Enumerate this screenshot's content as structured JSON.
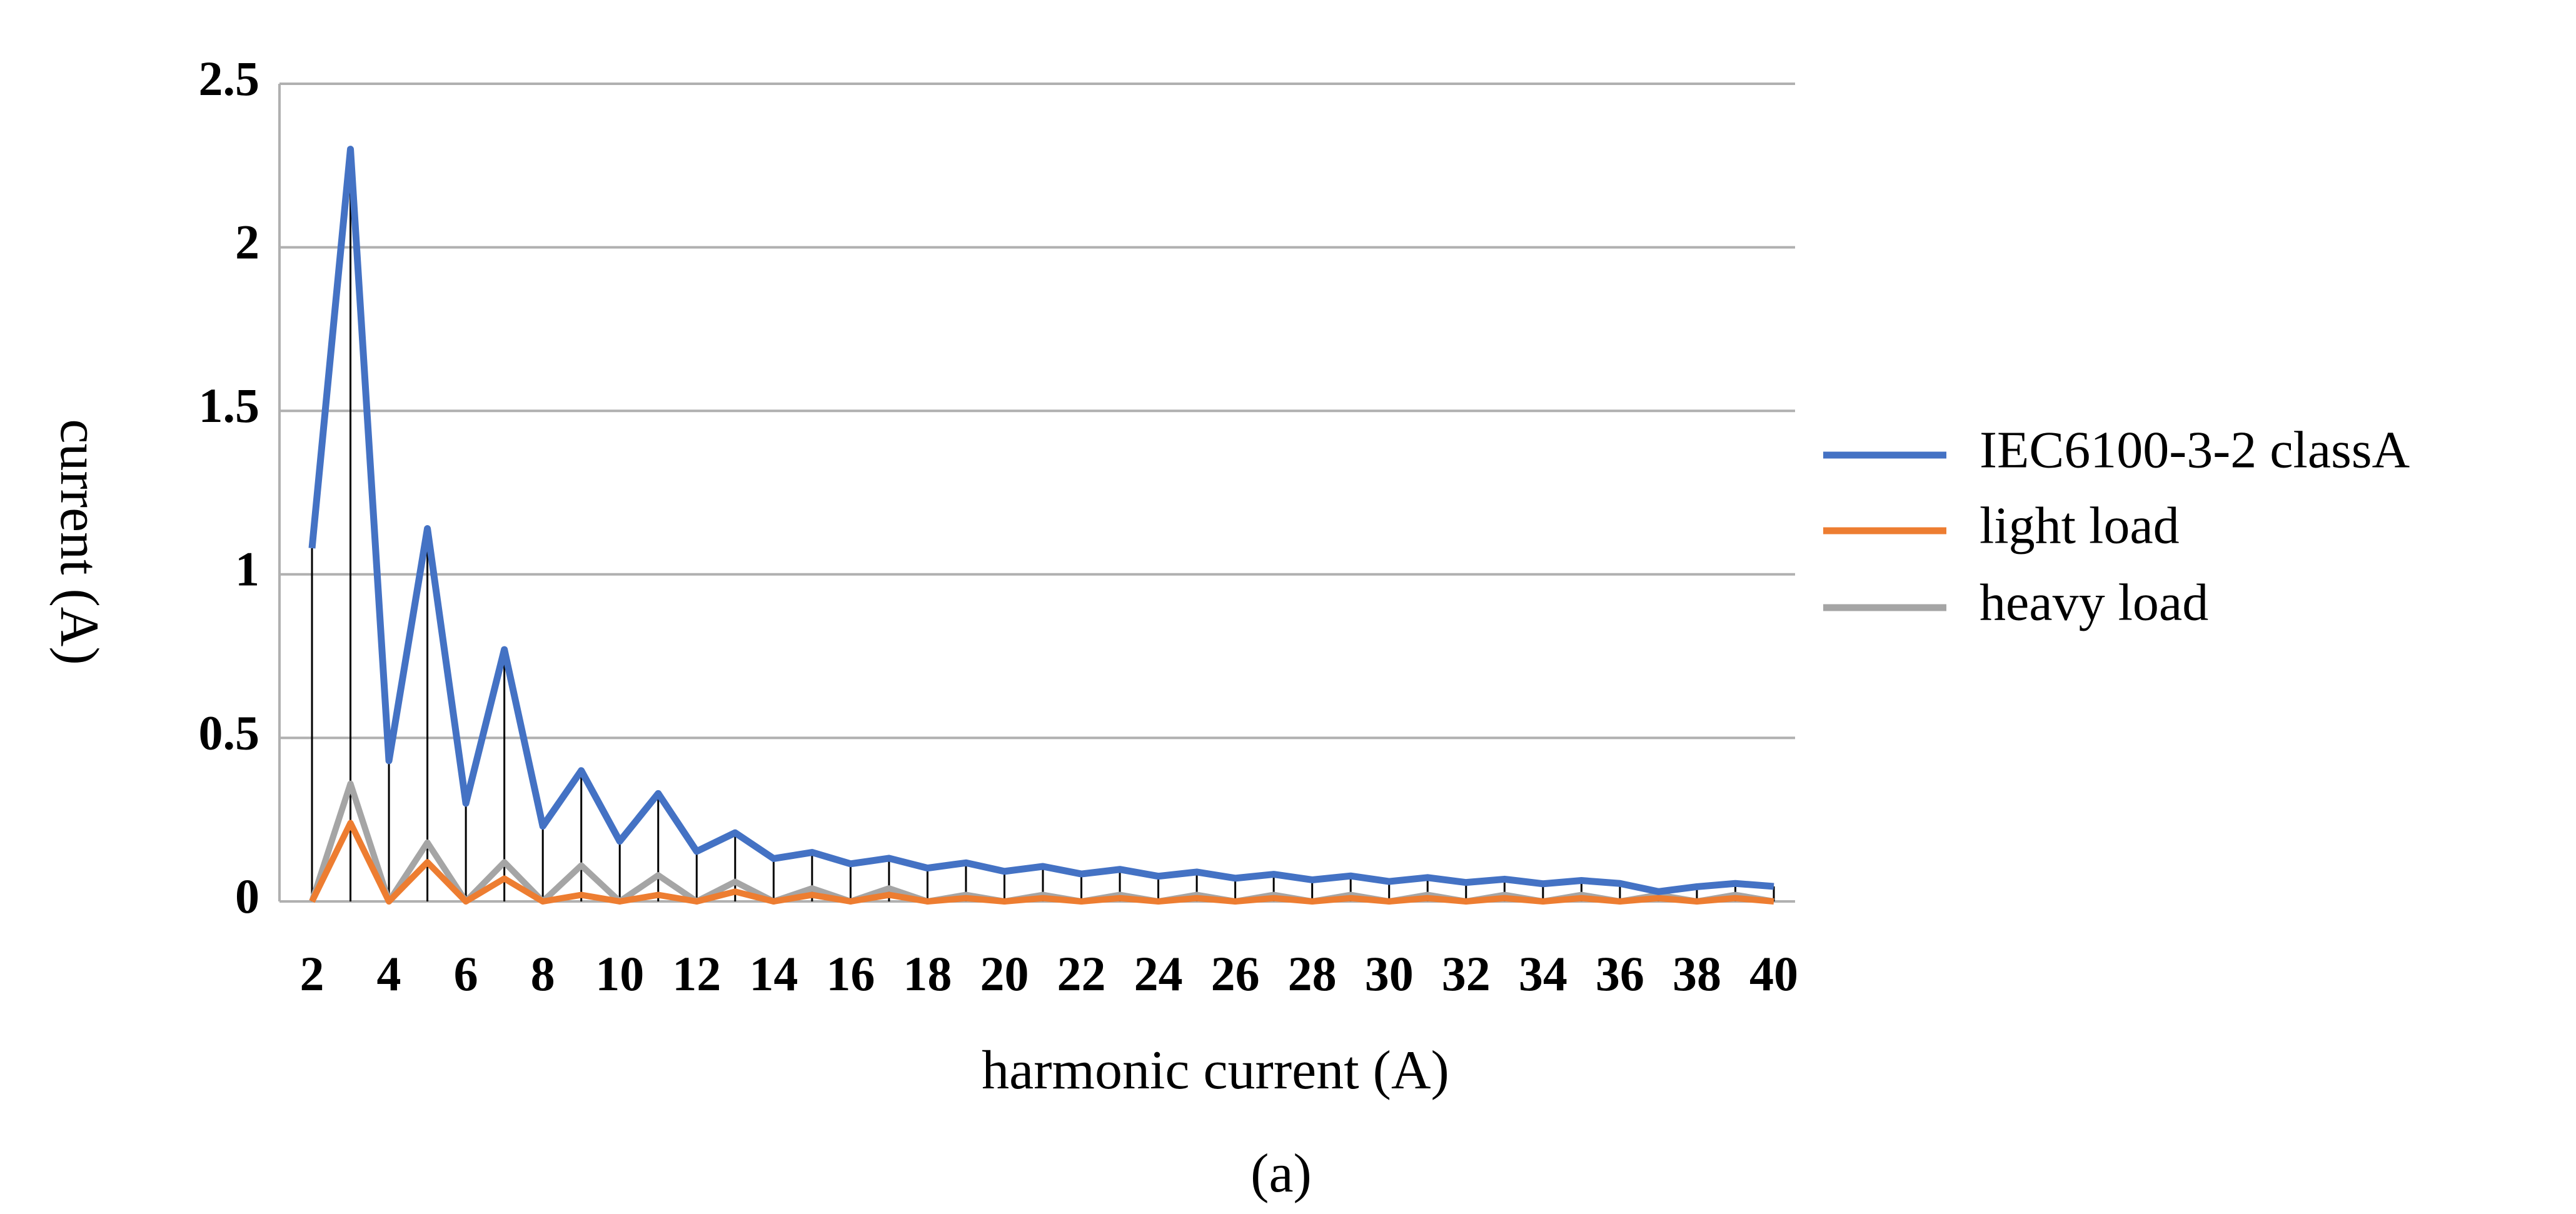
{
  "chart_data": {
    "type": "line",
    "x_label": "harmonic current (A)",
    "y_label": "current (A)",
    "caption": "(a)",
    "x": [
      2,
      3,
      4,
      5,
      6,
      7,
      8,
      9,
      10,
      11,
      12,
      13,
      14,
      15,
      16,
      17,
      18,
      19,
      20,
      21,
      22,
      23,
      24,
      25,
      26,
      27,
      28,
      29,
      30,
      31,
      32,
      33,
      34,
      35,
      36,
      37,
      38,
      39,
      40
    ],
    "series": [
      {
        "name": "IEC6100-3-2 classA",
        "color": "#4472c4",
        "values": [
          1.08,
          2.3,
          0.43,
          1.14,
          0.3,
          0.77,
          0.23,
          0.4,
          0.184,
          0.33,
          0.153,
          0.21,
          0.131,
          0.15,
          0.115,
          0.132,
          0.102,
          0.118,
          0.092,
          0.107,
          0.084,
          0.098,
          0.077,
          0.09,
          0.071,
          0.083,
          0.066,
          0.078,
          0.061,
          0.073,
          0.058,
          0.068,
          0.054,
          0.064,
          0.055,
          0.03,
          0.045,
          0.055,
          0.046
        ]
      },
      {
        "name": "light load",
        "color": "#ed7d31",
        "values": [
          0,
          0.24,
          0,
          0.12,
          0,
          0.07,
          0,
          0.02,
          0,
          0.02,
          0,
          0.03,
          0,
          0.02,
          0,
          0.02,
          0,
          0.01,
          0,
          0.01,
          0,
          0.01,
          0,
          0.01,
          0,
          0.01,
          0,
          0.01,
          0,
          0.01,
          0,
          0.01,
          0,
          0.01,
          0,
          0.01,
          0,
          0.01,
          0
        ]
      },
      {
        "name": "heavy load",
        "color": "#a5a5a5",
        "values": [
          0,
          0.36,
          0,
          0.18,
          0,
          0.12,
          0,
          0.11,
          0,
          0.08,
          0,
          0.06,
          0,
          0.04,
          0,
          0.04,
          0,
          0.02,
          0,
          0.02,
          0,
          0.02,
          0,
          0.02,
          0,
          0.02,
          0,
          0.02,
          0,
          0.02,
          0,
          0.02,
          0,
          0.02,
          0,
          0.02,
          0,
          0.02,
          0
        ]
      }
    ],
    "xlim": [
      2,
      40
    ],
    "xticks": [
      2,
      4,
      6,
      8,
      10,
      12,
      14,
      16,
      18,
      20,
      22,
      24,
      26,
      28,
      30,
      32,
      34,
      36,
      38,
      40
    ],
    "ylim": [
      0,
      2.5
    ],
    "yticks": [
      0,
      0.5,
      1,
      1.5,
      2,
      2.5
    ],
    "grid": true,
    "drop_lines": true,
    "legend": "right"
  }
}
